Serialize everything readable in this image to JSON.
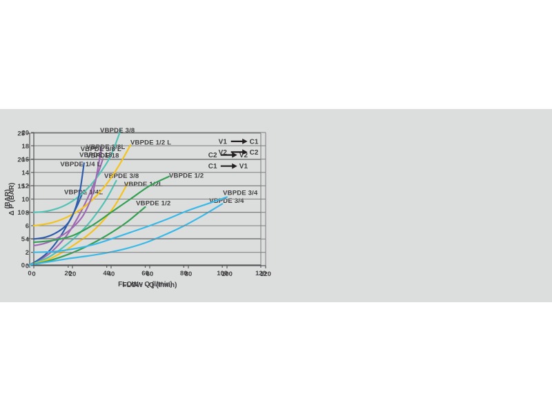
{
  "page": {
    "background": "#ffffff",
    "panel_background": "#dcdddd"
  },
  "colors": {
    "grid": "#7b7c7e",
    "axis": "#58595b",
    "text": "#414042",
    "arrow": "#231f20",
    "purple": "#9f6ab3",
    "blue": "#2f5dab",
    "teal": "#52c3b5",
    "yellow": "#f4c31f",
    "green": "#34a053",
    "cyan": "#38b9e8"
  },
  "chart_data": [
    {
      "id": "left",
      "type": "line",
      "title": "",
      "xlabel": "FLOW - Q (l/min)",
      "ylabel": "(BAR)",
      "xlim": [
        0,
        120
      ],
      "ylim": [
        0,
        25
      ],
      "xticks": [
        0,
        20,
        40,
        60,
        80,
        100,
        120
      ],
      "yticks": [
        0,
        5,
        10,
        15,
        20,
        25
      ],
      "grid": "horizontal",
      "legend": {
        "x": 92.7,
        "items": [
          {
            "from": "C2",
            "to": "V2",
            "y": 20.4
          },
          {
            "from": "C1",
            "to": "V1",
            "y": 18.3
          }
        ]
      },
      "series": [
        {
          "name": "VBPDE 3/8L / VBPDE 18",
          "color": "purple",
          "points": [
            [
              0,
              0
            ],
            [
              5,
              0.9
            ],
            [
              10,
              2.1
            ],
            [
              15,
              3.8
            ],
            [
              20,
              6.0
            ],
            [
              25,
              9.0
            ],
            [
              30,
              12.6
            ],
            [
              35,
              16.9
            ],
            [
              38,
              20.1
            ]
          ],
          "labels": [
            {
              "text": "VBPDE 3/8L",
              "x": 29.4,
              "y": 22.0
            },
            {
              "text": "VBPDE 18",
              "x": 29.4,
              "y": 20.35
            }
          ]
        },
        {
          "name": "VBPDE 1/4L",
          "color": "blue",
          "points": [
            [
              0,
              0
            ],
            [
              5,
              1.1
            ],
            [
              10,
              2.6
            ],
            [
              15,
              4.9
            ],
            [
              20,
              7.9
            ],
            [
              25,
              11.5
            ],
            [
              27,
              13.3
            ]
          ],
          "labels": [
            {
              "text": "VBPDE 1/4L",
              "x": 17.9,
              "y": 13.4
            }
          ]
        },
        {
          "name": "VBPDE 3/8",
          "color": "teal",
          "points": [
            [
              0,
              0
            ],
            [
              5,
              0.7
            ],
            [
              10,
              1.5
            ],
            [
              15,
              2.7
            ],
            [
              20,
              4.1
            ],
            [
              25,
              5.7
            ],
            [
              30,
              7.6
            ],
            [
              35,
              9.9
            ],
            [
              40,
              12.6
            ],
            [
              45,
              16.0
            ]
          ],
          "labels": [
            {
              "text": "VBPDE 3/8",
              "x": 38.7,
              "y": 16.5
            }
          ]
        },
        {
          "name": "VBPDE 1/2L",
          "color": "yellow",
          "points": [
            [
              0,
              0
            ],
            [
              5,
              0.5
            ],
            [
              10,
              1.1
            ],
            [
              15,
              2.0
            ],
            [
              20,
              3.1
            ],
            [
              25,
              4.3
            ],
            [
              30,
              5.6
            ],
            [
              35,
              7.2
            ],
            [
              40,
              9.2
            ],
            [
              45,
              11.7
            ],
            [
              51,
              15.6
            ]
          ],
          "labels": [
            {
              "text": "VBPDE 1/2L",
              "x": 49.0,
              "y": 14.9
            }
          ]
        },
        {
          "name": "VBPDE 1/2",
          "color": "green",
          "points": [
            [
              0,
              0
            ],
            [
              10,
              0.8
            ],
            [
              20,
              2.0
            ],
            [
              30,
              3.6
            ],
            [
              40,
              5.6
            ],
            [
              50,
              8.0
            ],
            [
              60,
              11.0
            ]
          ],
          "labels": [
            {
              "text": "VBPDE 1/2",
              "x": 55.2,
              "y": 11.3
            }
          ]
        },
        {
          "name": "VBPDE 3/4",
          "color": "cyan",
          "points": [
            [
              0,
              0
            ],
            [
              10,
              0.6
            ],
            [
              20,
              1.2
            ],
            [
              30,
              1.7
            ],
            [
              40,
              2.3
            ],
            [
              50,
              3.1
            ],
            [
              60,
              4.2
            ],
            [
              70,
              5.7
            ],
            [
              80,
              7.4
            ],
            [
              90,
              9.4
            ],
            [
              100,
              11.6
            ]
          ],
          "labels": [
            {
              "text": "VBPDE 3/4",
              "x": 93.2,
              "y": 11.8
            }
          ]
        }
      ]
    },
    {
      "id": "right",
      "type": "line",
      "title": "",
      "xlabel": "FLOW - Q (l/min)",
      "ylabel": "Δ P (BAR)",
      "xlim": [
        0,
        120
      ],
      "ylim": [
        0,
        20
      ],
      "xticks": [
        0,
        20,
        40,
        60,
        80,
        100,
        120
      ],
      "yticks": [
        0,
        2,
        4,
        6,
        8,
        10,
        12,
        14,
        16,
        18,
        20
      ],
      "grid": "horizontal",
      "legend": {
        "x": 95.6,
        "items": [
          {
            "from": "V1",
            "to": "C1",
            "y": 18.3
          },
          {
            "from": "V2",
            "to": "C2",
            "y": 16.7
          }
        ]
      },
      "series": [
        {
          "name": "VBPDE 3/8",
          "color": "teal",
          "points": [
            [
              0,
              8.0
            ],
            [
              5,
              8.1
            ],
            [
              10,
              8.4
            ],
            [
              15,
              8.9
            ],
            [
              20,
              9.7
            ],
            [
              25,
              10.8
            ],
            [
              30,
              12.3
            ],
            [
              35,
              14.2
            ],
            [
              40,
              16.6
            ],
            [
              45,
              20.4
            ]
          ],
          "labels": [
            {
              "text": "VBPDE 3/8",
              "x": 34.3,
              "y": 20.0
            }
          ]
        },
        {
          "name": "VBPDE 1/2 L",
          "color": "yellow",
          "points": [
            [
              0,
              6.0
            ],
            [
              5,
              6.2
            ],
            [
              10,
              6.5
            ],
            [
              15,
              7.0
            ],
            [
              20,
              7.7
            ],
            [
              25,
              8.6
            ],
            [
              30,
              9.8
            ],
            [
              35,
              11.3
            ],
            [
              40,
              13.2
            ],
            [
              45,
              15.5
            ],
            [
              50,
              18.1
            ]
          ],
          "labels": [
            {
              "text": "VBPDE 1/2 L",
              "x": 50.0,
              "y": 18.2
            }
          ]
        },
        {
          "name": "VBPDE 1/4 L",
          "color": "blue",
          "points": [
            [
              0,
              4.0
            ],
            [
              5,
              4.2
            ],
            [
              10,
              4.7
            ],
            [
              15,
              5.6
            ],
            [
              18,
              6.5
            ],
            [
              20,
              7.5
            ],
            [
              22,
              9.0
            ],
            [
              24,
              11.4
            ],
            [
              26,
              15.4
            ]
          ],
          "labels": [
            {
              "text": "VBPDE 1/4 L",
              "x": 13.7,
              "y": 14.9
            }
          ]
        },
        {
          "name": "VBPDE 3/8 L / VBPDE 18",
          "color": "purple",
          "points": [
            [
              0,
              3.0
            ],
            [
              5,
              3.3
            ],
            [
              10,
              3.8
            ],
            [
              15,
              4.6
            ],
            [
              20,
              5.7
            ],
            [
              25,
              7.3
            ],
            [
              28,
              8.9
            ],
            [
              30,
              10.4
            ],
            [
              32,
              12.8
            ],
            [
              35,
              17.6
            ]
          ],
          "labels": [
            {
              "text": "VBPDE 3/8 L",
              "x": 24.2,
              "y": 17.2
            },
            {
              "text": "VBPDE 18",
              "x": 23.6,
              "y": 16.3
            }
          ]
        },
        {
          "name": "VBPDE 1/2",
          "color": "green",
          "points": [
            [
              0,
              3.5
            ],
            [
              10,
              3.8
            ],
            [
              20,
              4.5
            ],
            [
              30,
              6.0
            ],
            [
              40,
              8.0
            ],
            [
              50,
              10.0
            ],
            [
              60,
              12.0
            ],
            [
              70,
              13.4
            ]
          ],
          "labels": [
            {
              "text": "VBPDE 1/2",
              "x": 70.0,
              "y": 13.2
            }
          ]
        },
        {
          "name": "VBPDE 3/4",
          "color": "cyan",
          "points": [
            [
              0,
              2.0
            ],
            [
              10,
              2.1
            ],
            [
              20,
              2.5
            ],
            [
              30,
              3.1
            ],
            [
              40,
              4.0
            ],
            [
              50,
              5.0
            ],
            [
              60,
              6.0
            ],
            [
              70,
              7.1
            ],
            [
              80,
              8.3
            ],
            [
              90,
              9.3
            ],
            [
              100,
              10.3
            ]
          ],
          "labels": [
            {
              "text": "VBPDE 3/4",
              "x": 97.9,
              "y": 10.6
            }
          ]
        }
      ]
    }
  ]
}
